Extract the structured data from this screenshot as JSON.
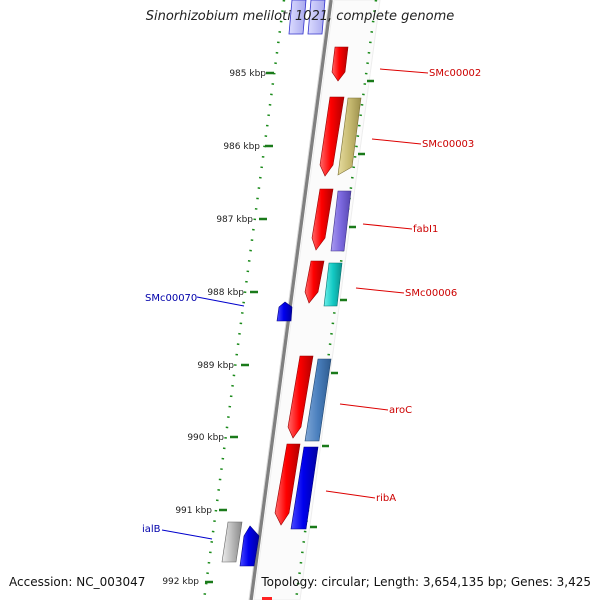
{
  "title": "Sinorhizobium meliloti 1021, complete genome",
  "footer": {
    "accession": "Accession: NC_003047",
    "topology": "Topology: circular; Length: 3,654,135 bp; Genes: 3,425"
  },
  "axis": {
    "ticks": [
      {
        "label": "985 kbp",
        "kbp": 985
      },
      {
        "label": "986 kbp",
        "kbp": 986
      },
      {
        "label": "987 kbp",
        "kbp": 987
      },
      {
        "label": "988 kbp",
        "kbp": 988
      },
      {
        "label": "989 kbp",
        "kbp": 989
      },
      {
        "label": "990 kbp",
        "kbp": 990
      },
      {
        "label": "991 kbp",
        "kbp": 991
      },
      {
        "label": "992 kbp",
        "kbp": 992
      }
    ]
  },
  "genes": [
    {
      "name": "SMc00002",
      "color": "#cc0000"
    },
    {
      "name": "SMc00003",
      "color": "#cc0000"
    },
    {
      "name": "fabI1",
      "color": "#cc0000"
    },
    {
      "name": "SMc00006",
      "color": "#cc0000"
    },
    {
      "name": "SMc00070",
      "color": "#0000aa"
    },
    {
      "name": "aroC",
      "color": "#cc0000"
    },
    {
      "name": "ribA",
      "color": "#cc0000"
    },
    {
      "name": "ialB",
      "color": "#0000aa"
    }
  ],
  "colors": {
    "forward_strand": "#ff0000",
    "reverse_strand": "#0000ee",
    "tick": "#1a7a1a",
    "backbone": "#888888"
  }
}
